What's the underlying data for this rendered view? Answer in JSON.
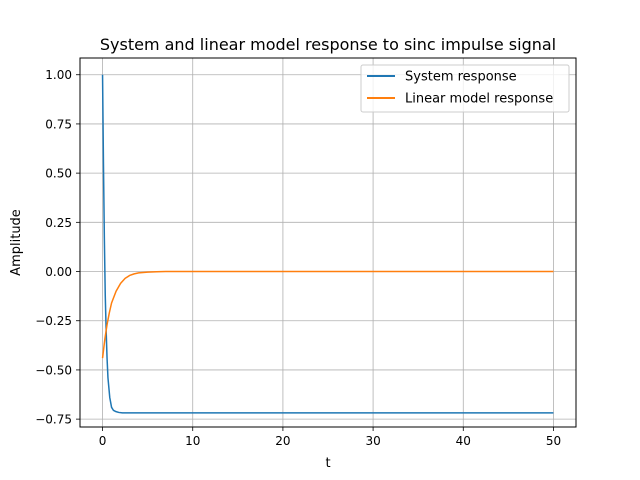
{
  "chart_data": {
    "type": "line",
    "title": "System and linear model response to sinc impulse signal",
    "xlabel": "t",
    "ylabel": "Amplitude",
    "xlim": [
      -2.5,
      52.5
    ],
    "ylim": [
      -0.79,
      1.085
    ],
    "xticks": [
      0,
      10,
      20,
      30,
      40,
      50
    ],
    "xtick_labels": [
      "0",
      "10",
      "20",
      "30",
      "40",
      "50"
    ],
    "yticks": [
      1.0,
      0.75,
      0.5,
      0.25,
      0.0,
      -0.25,
      -0.5,
      -0.75
    ],
    "ytick_labels": [
      "1.00",
      "0.75",
      "0.50",
      "0.25",
      "0.00",
      "−0.25",
      "−0.50",
      "−0.75"
    ],
    "grid": true,
    "legend_position": "top-right",
    "series": [
      {
        "name": "System response",
        "color": "#1f77b4",
        "x": [
          0,
          0.1,
          0.2,
          0.3,
          0.4,
          0.5,
          0.6,
          0.8,
          1.0,
          1.2,
          1.5,
          1.8,
          2.2,
          3,
          5,
          10,
          20,
          30,
          40,
          50
        ],
        "y": [
          1.0,
          0.55,
          0.17,
          -0.12,
          -0.3,
          -0.44,
          -0.54,
          -0.64,
          -0.69,
          -0.705,
          -0.712,
          -0.716,
          -0.718,
          -0.718,
          -0.718,
          -0.718,
          -0.718,
          -0.718,
          -0.718,
          -0.718
        ]
      },
      {
        "name": "Linear model response",
        "color": "#ff7f0e",
        "x": [
          0,
          0.25,
          0.5,
          0.75,
          1.0,
          1.5,
          2.0,
          2.5,
          3.0,
          3.5,
          4.0,
          5.0,
          6.0,
          7.0,
          8.0,
          10,
          20,
          30,
          40,
          50
        ],
        "y": [
          -0.44,
          -0.345,
          -0.27,
          -0.21,
          -0.16,
          -0.1,
          -0.06,
          -0.035,
          -0.02,
          -0.012,
          -0.007,
          -0.003,
          -0.001,
          0.0,
          0.0,
          0.0,
          0.0,
          0.0,
          0.0,
          0.0
        ]
      }
    ]
  }
}
